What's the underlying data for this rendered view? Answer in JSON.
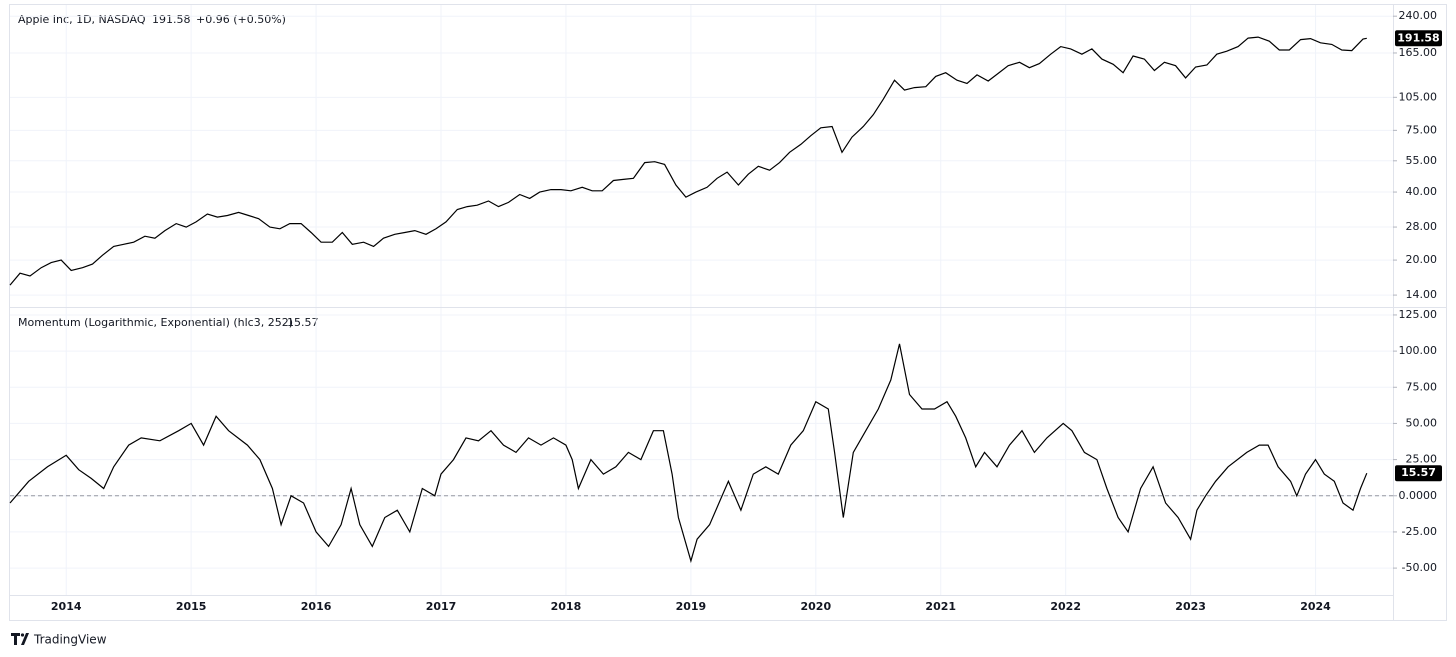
{
  "chart_data": [
    {
      "type": "line",
      "title": "Apple Inc, 1D, NASDAQ",
      "change_label": "+0.96 (+0.50%)",
      "color": "#000000",
      "log_scale": true,
      "xlim": [
        2013.55,
        2024.62
      ],
      "ylim": [
        12.4,
        269
      ],
      "yticks": [
        {
          "value": 14,
          "label": "14.00"
        },
        {
          "value": 20,
          "label": "20.00"
        },
        {
          "value": 28,
          "label": "28.00"
        },
        {
          "value": 40,
          "label": "40.00"
        },
        {
          "value": 55,
          "label": "55.00"
        },
        {
          "value": 75,
          "label": "75.00"
        },
        {
          "value": 105,
          "label": "105.00"
        },
        {
          "value": 165,
          "label": "165.00"
        },
        {
          "value": 240,
          "label": "240.00"
        }
      ],
      "x": [
        2013.55,
        2013.63,
        2013.71,
        2013.8,
        2013.88,
        2013.96,
        2014.04,
        2014.13,
        2014.21,
        2014.29,
        2014.38,
        2014.46,
        2014.54,
        2014.63,
        2014.71,
        2014.79,
        2014.88,
        2014.96,
        2015.04,
        2015.13,
        2015.21,
        2015.29,
        2015.38,
        2015.46,
        2015.54,
        2015.63,
        2015.71,
        2015.79,
        2015.88,
        2015.96,
        2016.04,
        2016.13,
        2016.21,
        2016.29,
        2016.38,
        2016.46,
        2016.54,
        2016.63,
        2016.71,
        2016.79,
        2016.88,
        2016.96,
        2017.04,
        2017.13,
        2017.21,
        2017.29,
        2017.38,
        2017.46,
        2017.54,
        2017.63,
        2017.71,
        2017.79,
        2017.88,
        2017.96,
        2018.04,
        2018.13,
        2018.21,
        2018.29,
        2018.38,
        2018.46,
        2018.54,
        2018.63,
        2018.71,
        2018.79,
        2018.88,
        2018.96,
        2019.04,
        2019.13,
        2019.21,
        2019.29,
        2019.38,
        2019.46,
        2019.54,
        2019.63,
        2019.71,
        2019.79,
        2019.88,
        2019.96,
        2020.04,
        2020.13,
        2020.21,
        2020.29,
        2020.38,
        2020.46,
        2020.54,
        2020.63,
        2020.71,
        2020.79,
        2020.88,
        2020.96,
        2021.04,
        2021.13,
        2021.21,
        2021.29,
        2021.38,
        2021.46,
        2021.54,
        2021.63,
        2021.71,
        2021.79,
        2021.88,
        2021.96,
        2022.04,
        2022.13,
        2022.21,
        2022.29,
        2022.38,
        2022.46,
        2022.54,
        2022.63,
        2022.71,
        2022.79,
        2022.88,
        2022.96,
        2023.04,
        2023.13,
        2023.21,
        2023.29,
        2023.38,
        2023.46,
        2023.54,
        2023.63,
        2023.71,
        2023.79,
        2023.88,
        2023.96,
        2024.04,
        2024.13,
        2024.21,
        2024.29,
        2024.38,
        2024.41
      ],
      "values": [
        15.5,
        17.5,
        17.0,
        18.5,
        19.5,
        20.0,
        18.0,
        18.5,
        19.2,
        21.0,
        23.0,
        23.5,
        24.0,
        25.5,
        25.0,
        27.0,
        29.0,
        28.0,
        29.5,
        32.0,
        31.0,
        31.5,
        32.5,
        31.5,
        30.5,
        28.0,
        27.5,
        29.0,
        29.0,
        26.5,
        24.0,
        24.0,
        26.5,
        23.5,
        24.0,
        23.0,
        25.0,
        26.0,
        26.5,
        27.0,
        26.0,
        27.5,
        29.5,
        33.5,
        34.5,
        35.0,
        36.5,
        34.5,
        36.0,
        39.0,
        37.5,
        40.0,
        41.0,
        41.0,
        40.5,
        42.0,
        40.5,
        40.5,
        45.0,
        45.5,
        46.0,
        54.0,
        54.5,
        53.0,
        43.0,
        38.0,
        40.0,
        42.0,
        46.0,
        49.0,
        43.0,
        48.0,
        52.0,
        50.0,
        54.0,
        60.0,
        65.0,
        71.0,
        77.0,
        78.0,
        60.0,
        70.0,
        78.0,
        88.0,
        103.0,
        125.0,
        113.0,
        116.0,
        117.0,
        130.0,
        135.0,
        125.0,
        121.0,
        132.0,
        124.0,
        134.0,
        145.0,
        150.0,
        142.0,
        148.0,
        163.0,
        176.0,
        172.0,
        163.0,
        172.0,
        155.0,
        147.0,
        135.0,
        160.0,
        155.0,
        138.0,
        150.0,
        145.0,
        128.0,
        143.0,
        146.0,
        163.0,
        168.0,
        176.0,
        192.0,
        194.0,
        186.0,
        170.0,
        170.0,
        189.0,
        191.0,
        183.0,
        180.0,
        170.0,
        169.0,
        190.0,
        191.58
      ]
    },
    {
      "type": "line",
      "title": "Momentum (Logarithmic, Exponential) (hlc3, 252)",
      "color": "#000000",
      "hline": 0,
      "xlim": [
        2013.55,
        2024.62
      ],
      "ylim": [
        -68.6,
        129.8
      ],
      "xticks": [
        2014,
        2015,
        2016,
        2017,
        2018,
        2019,
        2020,
        2021,
        2022,
        2023,
        2024
      ],
      "yticks": [
        {
          "value": -50,
          "label": "-50.00"
        },
        {
          "value": -25,
          "label": "-25.00"
        },
        {
          "value": 0,
          "label": "0.0000"
        },
        {
          "value": 25,
          "label": "25.00"
        },
        {
          "value": 50,
          "label": "50.00"
        },
        {
          "value": 75,
          "label": "75.00"
        },
        {
          "value": 100,
          "label": "100.00"
        },
        {
          "value": 125,
          "label": "125.00"
        }
      ],
      "x": [
        2013.55,
        2013.7,
        2013.85,
        2014.0,
        2014.1,
        2014.2,
        2014.3,
        2014.38,
        2014.5,
        2014.6,
        2014.75,
        2014.9,
        2015.0,
        2015.1,
        2015.2,
        2015.3,
        2015.45,
        2015.55,
        2015.65,
        2015.72,
        2015.8,
        2015.9,
        2016.0,
        2016.1,
        2016.2,
        2016.28,
        2016.35,
        2016.45,
        2016.55,
        2016.65,
        2016.75,
        2016.85,
        2016.95,
        2017.0,
        2017.1,
        2017.2,
        2017.3,
        2017.4,
        2017.5,
        2017.6,
        2017.7,
        2017.8,
        2017.9,
        2018.0,
        2018.05,
        2018.1,
        2018.2,
        2018.3,
        2018.4,
        2018.5,
        2018.6,
        2018.7,
        2018.78,
        2018.85,
        2018.9,
        2019.0,
        2019.05,
        2019.15,
        2019.25,
        2019.3,
        2019.4,
        2019.5,
        2019.6,
        2019.7,
        2019.8,
        2019.9,
        2020.0,
        2020.1,
        2020.15,
        2020.22,
        2020.3,
        2020.4,
        2020.5,
        2020.6,
        2020.67,
        2020.75,
        2020.85,
        2020.95,
        2021.05,
        2021.12,
        2021.2,
        2021.28,
        2021.35,
        2021.45,
        2021.55,
        2021.65,
        2021.75,
        2021.85,
        2021.98,
        2022.05,
        2022.15,
        2022.25,
        2022.33,
        2022.42,
        2022.5,
        2022.6,
        2022.7,
        2022.8,
        2022.9,
        2023.0,
        2023.05,
        2023.12,
        2023.2,
        2023.3,
        2023.45,
        2023.55,
        2023.62,
        2023.7,
        2023.8,
        2023.85,
        2023.92,
        2024.0,
        2024.07,
        2024.15,
        2024.22,
        2024.3,
        2024.36,
        2024.41
      ],
      "values": [
        -5,
        10,
        20,
        28,
        18,
        12,
        5,
        20,
        35,
        40,
        38,
        45,
        50,
        35,
        55,
        45,
        35,
        25,
        5,
        -20,
        0,
        -5,
        -25,
        -35,
        -20,
        5,
        -20,
        -35,
        -15,
        -10,
        -25,
        5,
        0,
        15,
        25,
        40,
        38,
        45,
        35,
        30,
        40,
        35,
        40,
        35,
        25,
        5,
        25,
        15,
        20,
        30,
        25,
        45,
        45,
        15,
        -15,
        -45,
        -30,
        -20,
        0,
        10,
        -10,
        15,
        20,
        15,
        35,
        45,
        65,
        60,
        30,
        -15,
        30,
        45,
        60,
        80,
        105,
        70,
        60,
        60,
        65,
        55,
        40,
        20,
        30,
        20,
        35,
        45,
        30,
        40,
        50,
        45,
        30,
        25,
        5,
        -15,
        -25,
        5,
        20,
        -5,
        -15,
        -30,
        -10,
        0,
        10,
        20,
        30,
        35,
        35,
        20,
        10,
        0,
        15,
        25,
        15,
        10,
        -5,
        -10,
        5,
        15.57
      ]
    }
  ],
  "brand": "TradingView"
}
